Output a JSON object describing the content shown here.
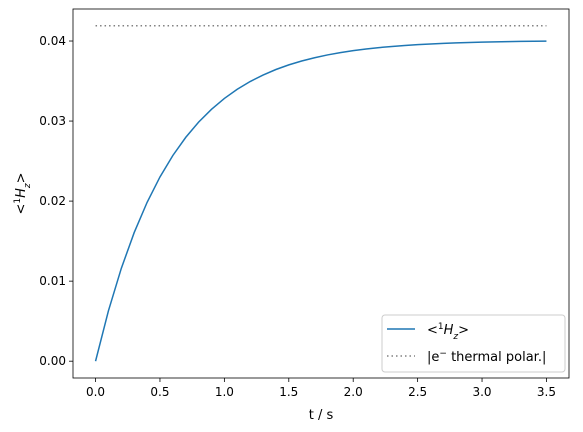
{
  "chart_data": {
    "type": "line",
    "xlabel": "t / s",
    "ylabel_main": "<",
    "ylabel_sup": "1",
    "ylabel_H": "H",
    "ylabel_sub": "z",
    "ylabel_end": ">",
    "xlim": [
      -0.175,
      3.675
    ],
    "ylim": [
      -0.0021,
      0.044
    ],
    "xticks": [
      0.0,
      0.5,
      1.0,
      1.5,
      2.0,
      2.5,
      3.0,
      3.5
    ],
    "xtick_labels": [
      "0.0",
      "0.5",
      "1.0",
      "1.5",
      "2.0",
      "2.5",
      "3.0",
      "3.5"
    ],
    "yticks": [
      0.0,
      0.01,
      0.02,
      0.03,
      0.04
    ],
    "ytick_labels": [
      "0.00",
      "0.01",
      "0.02",
      "0.03",
      "0.04"
    ],
    "grid": false,
    "legend_placement": "lower-right",
    "series": [
      {
        "name": "<1Hz>",
        "color": "#1f77b4",
        "style": "solid",
        "x": [
          0.0,
          0.1,
          0.2,
          0.3,
          0.4,
          0.5,
          0.6,
          0.7,
          0.8,
          0.9,
          1.0,
          1.1,
          1.2,
          1.3,
          1.4,
          1.5,
          1.6,
          1.7,
          1.8,
          1.9,
          2.0,
          2.1,
          2.2,
          2.3,
          2.4,
          2.5,
          2.6,
          2.7,
          2.8,
          2.9,
          3.0,
          3.1,
          3.2,
          3.3,
          3.4,
          3.5
        ],
        "values": [
          0.0,
          0.00629,
          0.0116,
          0.01607,
          0.01984,
          0.02302,
          0.0257,
          0.02796,
          0.02987,
          0.03147,
          0.03283,
          0.03397,
          0.03494,
          0.03575,
          0.03644,
          0.03702,
          0.0375,
          0.03791,
          0.03826,
          0.03855,
          0.0388,
          0.039,
          0.03918,
          0.03932,
          0.03944,
          0.03955,
          0.03963,
          0.03971,
          0.03977,
          0.03982,
          0.03986,
          0.0399,
          0.03993,
          0.03995,
          0.03997,
          0.03999
        ]
      },
      {
        "name": "|e− thermal polar.|",
        "color": "#808080",
        "style": "dotted",
        "x": [
          0.0,
          3.5
        ],
        "values": [
          0.0419,
          0.0419
        ]
      }
    ],
    "legend": {
      "entry1_pre": "<",
      "entry1_sup": "1",
      "entry1_H": "H",
      "entry1_sub": "z",
      "entry1_post": ">",
      "entry2_pre": "|e",
      "entry2_sup": "−",
      "entry2_post": " thermal polar.|"
    }
  }
}
